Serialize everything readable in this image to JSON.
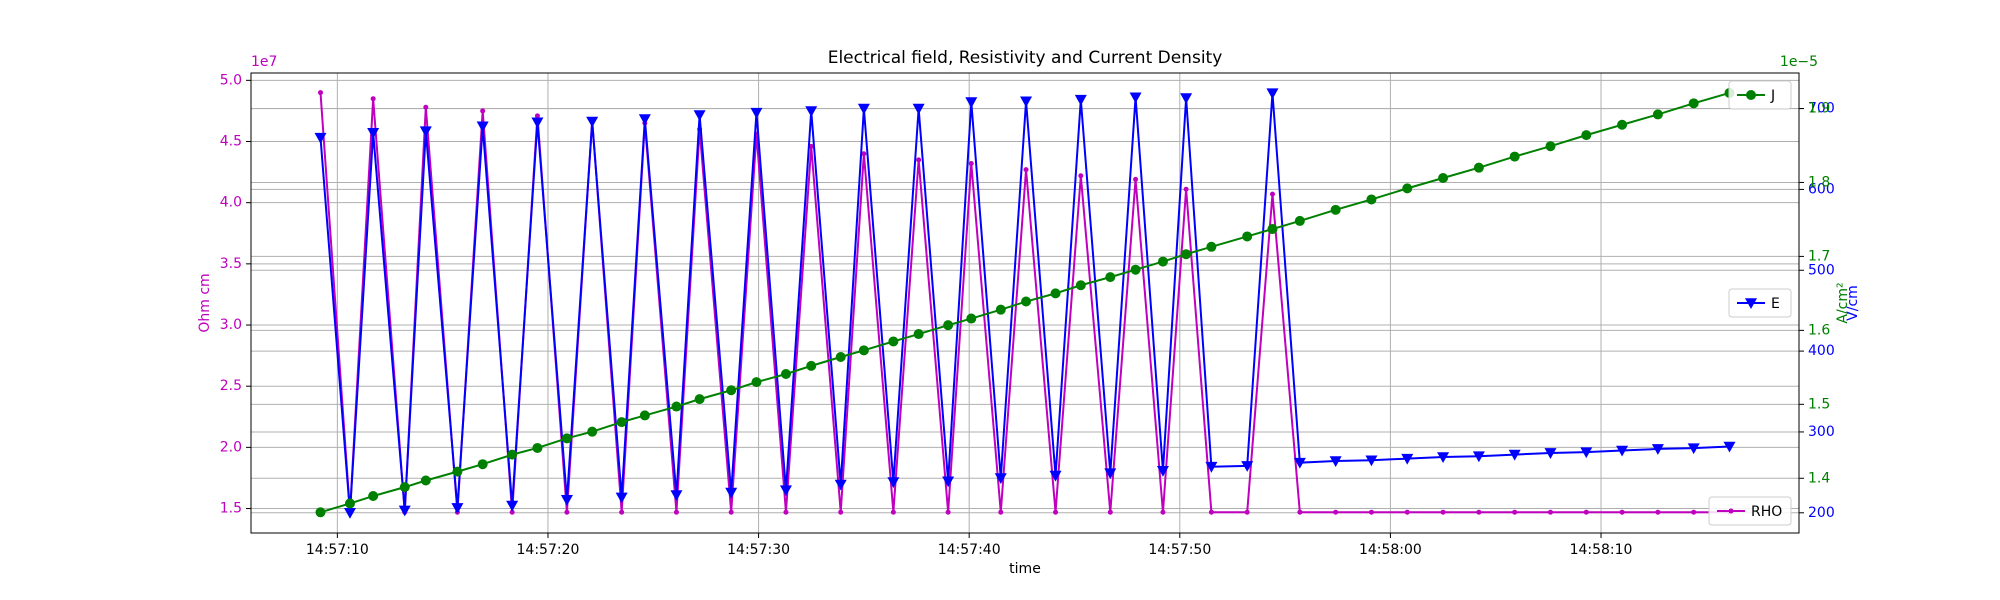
{
  "chart_data": {
    "type": "line",
    "title": "Electrical field, Resistivity and Current Density",
    "xlabel": "time",
    "x": [
      "14:57:09.2",
      "14:57:10.6",
      "14:57:11.7",
      "14:57:13.2",
      "14:57:14.2",
      "14:57:15.7",
      "14:57:16.9",
      "14:57:18.3",
      "14:57:19.5",
      "14:57:20.9",
      "14:57:22.1",
      "14:57:23.5",
      "14:57:24.6",
      "14:57:26.1",
      "14:57:27.2",
      "14:57:28.7",
      "14:57:29.9",
      "14:57:31.3",
      "14:57:32.5",
      "14:57:33.9",
      "14:57:35.0",
      "14:57:36.4",
      "14:57:37.6",
      "14:57:39.0",
      "14:57:40.1",
      "14:57:41.5",
      "14:57:42.7",
      "14:57:44.1",
      "14:57:45.3",
      "14:57:46.7",
      "14:57:47.9",
      "14:57:49.2",
      "14:57:50.3",
      "14:57:51.5",
      "14:57:53.2",
      "14:57:54.4",
      "14:57:55.7",
      "14:57:57.4",
      "14:57:59.1",
      "14:58:00.8",
      "14:58:02.5",
      "14:58:04.2",
      "14:58:05.9",
      "14:58:07.6",
      "14:58:09.3",
      "14:58:11.0",
      "14:58:12.7",
      "14:58:14.4",
      "14:58:16.1"
    ],
    "xlim": [
      "14:57:05.9",
      "14:58:19.4"
    ],
    "xticks": [
      "14:57:10",
      "14:57:20",
      "14:57:30",
      "14:57:40",
      "14:57:50",
      "14:58:00",
      "14:58:10"
    ],
    "grid": true,
    "ylabel": "Ohm cm",
    "y_offset_label": "1e7",
    "ylim": [
      1.3,
      5.06
    ],
    "yticks": [
      1.5,
      {
        "value": 2,
        "label": "2.0"
      },
      2.5,
      {
        "value": 3,
        "label": "3.0"
      },
      3.5,
      {
        "value": 4,
        "label": "4.0"
      },
      4.5,
      {
        "value": 5,
        "label": "5.0"
      }
    ],
    "y2label": "V/cm",
    "y2lim": [
      175,
      744
    ],
    "y2ticks": [
      200,
      300,
      400,
      500,
      600,
      700
    ],
    "y3label": "A/cm²",
    "y3_offset_label": "1e−5",
    "y3lim": [
      1.326,
      1.948
    ],
    "y3ticks": [
      1.4,
      1.5,
      1.6,
      1.7,
      1.8,
      1.9
    ],
    "series": [
      {
        "name": "RHO",
        "color": "#bf00bf",
        "marker": "point",
        "legend": "lower right",
        "values": [
          4.9,
          1.47,
          4.85,
          1.47,
          4.78,
          1.47,
          4.75,
          1.47,
          4.71,
          1.47,
          4.67,
          1.47,
          4.65,
          1.47,
          4.6,
          1.47,
          4.56,
          1.47,
          4.46,
          1.47,
          4.4,
          1.47,
          4.35,
          1.47,
          4.32,
          1.47,
          4.27,
          1.47,
          4.22,
          1.47,
          4.19,
          1.47,
          4.11,
          1.47,
          1.47,
          4.07,
          1.47,
          1.47,
          1.47,
          1.47,
          1.47,
          1.47,
          1.47,
          1.47,
          1.47,
          1.47,
          1.47,
          1.47,
          1.47
        ]
      },
      {
        "name": "E",
        "color": "#0000ff",
        "marker": "triangle-down",
        "axis": "y2",
        "legend": "center right",
        "values": [
          664,
          200,
          670,
          203,
          672,
          206,
          678,
          209,
          683,
          216,
          684,
          219,
          687,
          222,
          692,
          225,
          695,
          228,
          697,
          235,
          700,
          238,
          700,
          239,
          708,
          243,
          709,
          246,
          711,
          249,
          714,
          252,
          713,
          257,
          258,
          719,
          262,
          264,
          265,
          267,
          269,
          270,
          272,
          274,
          275,
          277,
          279,
          280,
          282
        ]
      },
      {
        "name": "J",
        "color": "#008000",
        "marker": "circle",
        "axis": "y3",
        "legend": "upper right",
        "values": [
          1.354,
          1.366,
          1.376,
          1.388,
          1.397,
          1.409,
          1.419,
          1.432,
          1.441,
          1.454,
          1.463,
          1.476,
          1.485,
          1.497,
          1.507,
          1.519,
          1.53,
          1.541,
          1.552,
          1.564,
          1.573,
          1.585,
          1.595,
          1.607,
          1.616,
          1.628,
          1.639,
          1.65,
          1.661,
          1.672,
          1.682,
          1.693,
          1.703,
          1.713,
          1.727,
          1.737,
          1.748,
          1.763,
          1.777,
          1.792,
          1.806,
          1.82,
          1.835,
          1.849,
          1.864,
          1.878,
          1.892,
          1.907,
          1.921
        ]
      }
    ]
  }
}
